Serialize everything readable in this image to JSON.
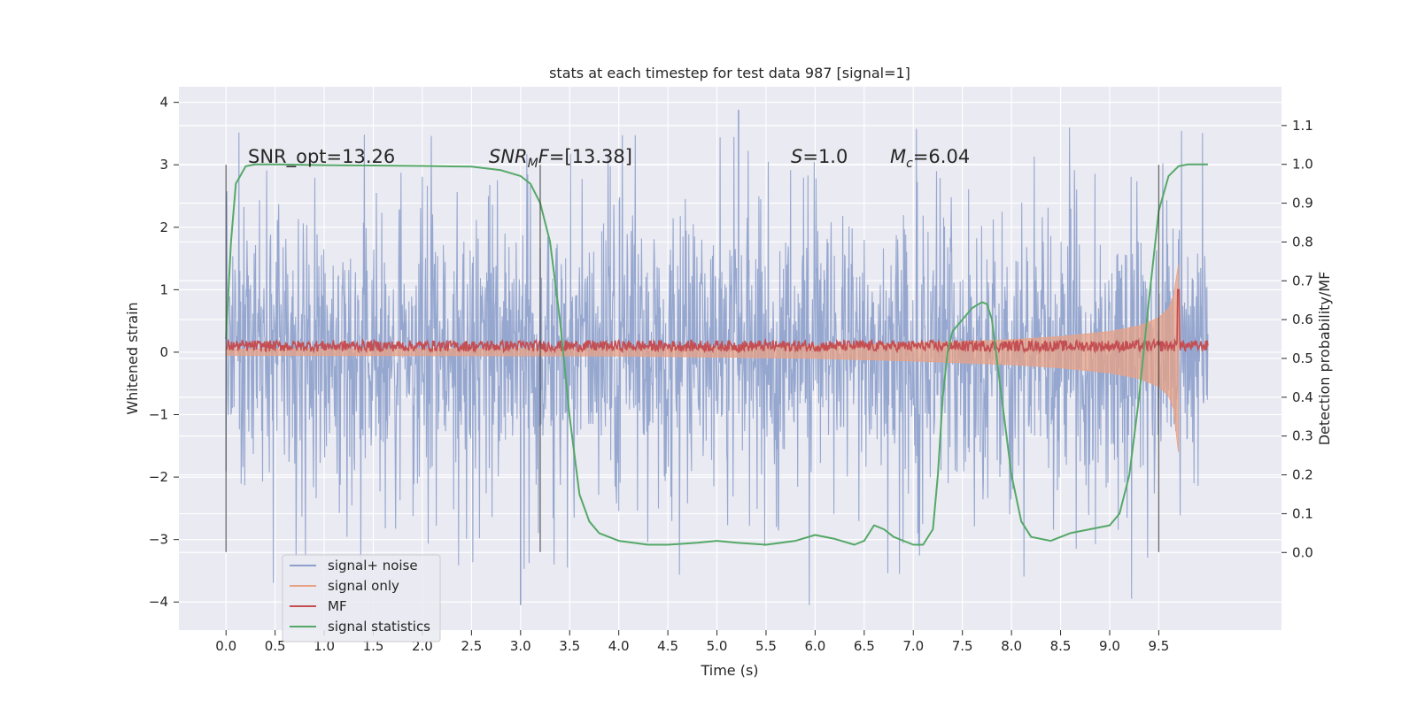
{
  "chart_data": {
    "type": "line",
    "title": "stats at each timestep for test data 987 [signal=1]",
    "xlabel": "Time (s)",
    "ylabel": "Whitened strain",
    "ylabel_right": "Detection probability/MF",
    "xlim": [
      -0.48,
      10.75
    ],
    "ylim": [
      -4.45,
      4.25
    ],
    "ylim_right": [
      -0.2,
      1.2
    ],
    "grid": true,
    "legend_position": "lower-left",
    "x_ticks": [
      "0.0",
      "0.5",
      "1.0",
      "1.5",
      "2.0",
      "2.5",
      "3.0",
      "3.5",
      "4.0",
      "4.5",
      "5.0",
      "5.5",
      "6.0",
      "6.5",
      "7.0",
      "7.5",
      "8.0",
      "8.5",
      "9.0",
      "9.5"
    ],
    "y_ticks": [
      "4",
      "3",
      "2",
      "1",
      "0",
      "−1",
      "−2",
      "−3",
      "−4"
    ],
    "y_ticks_right": [
      "1.1",
      "1.0",
      "0.9",
      "0.8",
      "0.7",
      "0.6",
      "0.5",
      "0.4",
      "0.3",
      "0.2",
      "0.1",
      "0.0"
    ],
    "annotations": {
      "snr_opt": "SNR_opt=13.26",
      "snr_mf_sym": "SNR",
      "snr_mf_sub": "M",
      "snr_mf_f": "F",
      "snr_mf_val": "=[13.38]",
      "s_sym": "S",
      "s_val": "=1.0",
      "mc_sym": "M",
      "mc_sub": "c",
      "mc_val": "=6.04"
    },
    "vertical_lines_x": [
      0.0,
      3.2,
      9.5
    ],
    "vertical_lines_y_range": [
      -3.2,
      3.0
    ],
    "series": [
      {
        "name": "signal+ noise",
        "color": "#8da0cb",
        "x_range": [
          0.0,
          10.0
        ],
        "envelope_upper": 1.9,
        "envelope_lower": -1.9,
        "peak_max": 3.88,
        "peak_min": -4.05
      },
      {
        "name": "signal only",
        "color": "#e8a285",
        "x": [
          0.0,
          4.0,
          5.0,
          6.0,
          7.0,
          8.0,
          8.5,
          9.0,
          9.3,
          9.5,
          9.6,
          9.65,
          9.7
        ],
        "upper": [
          0.05,
          0.06,
          0.08,
          0.1,
          0.14,
          0.2,
          0.25,
          0.33,
          0.42,
          0.55,
          0.7,
          0.9,
          1.4
        ],
        "lower": [
          -0.05,
          -0.06,
          -0.08,
          -0.1,
          -0.14,
          -0.2,
          -0.25,
          -0.33,
          -0.42,
          -0.55,
          -0.7,
          -0.9,
          -1.6
        ]
      },
      {
        "name": "MF",
        "color": "#c44e52",
        "x_range": [
          0.0,
          10.0
        ],
        "baseline": 0.1,
        "noise_amp": 0.09,
        "spike_x": 9.7,
        "spike_y": 1.0
      },
      {
        "name": "signal statistics",
        "color": "#55a868",
        "axis": "right",
        "x": [
          0.0,
          0.05,
          0.1,
          0.2,
          0.3,
          0.5,
          1.0,
          1.5,
          2.0,
          2.5,
          2.8,
          3.0,
          3.1,
          3.2,
          3.3,
          3.4,
          3.5,
          3.6,
          3.7,
          3.8,
          4.0,
          4.3,
          4.5,
          4.8,
          5.0,
          5.2,
          5.5,
          5.8,
          6.0,
          6.2,
          6.4,
          6.5,
          6.6,
          6.7,
          6.8,
          7.0,
          7.1,
          7.2,
          7.25,
          7.3,
          7.35,
          7.4,
          7.5,
          7.6,
          7.7,
          7.75,
          7.8,
          7.9,
          8.0,
          8.1,
          8.2,
          8.4,
          8.6,
          8.8,
          9.0,
          9.1,
          9.2,
          9.3,
          9.4,
          9.5,
          9.6,
          9.7,
          9.8,
          9.9,
          10.0
        ],
        "y": [
          0.55,
          0.8,
          0.95,
          0.995,
          1.0,
          1.0,
          0.998,
          0.997,
          0.996,
          0.994,
          0.985,
          0.97,
          0.95,
          0.9,
          0.8,
          0.6,
          0.35,
          0.15,
          0.08,
          0.05,
          0.03,
          0.02,
          0.02,
          0.025,
          0.03,
          0.025,
          0.02,
          0.03,
          0.045,
          0.035,
          0.02,
          0.03,
          0.07,
          0.06,
          0.04,
          0.02,
          0.02,
          0.06,
          0.2,
          0.4,
          0.52,
          0.57,
          0.6,
          0.63,
          0.645,
          0.64,
          0.6,
          0.4,
          0.2,
          0.08,
          0.04,
          0.03,
          0.05,
          0.06,
          0.07,
          0.1,
          0.2,
          0.4,
          0.65,
          0.88,
          0.97,
          0.995,
          1.0,
          1.0,
          1.0
        ]
      }
    ]
  }
}
